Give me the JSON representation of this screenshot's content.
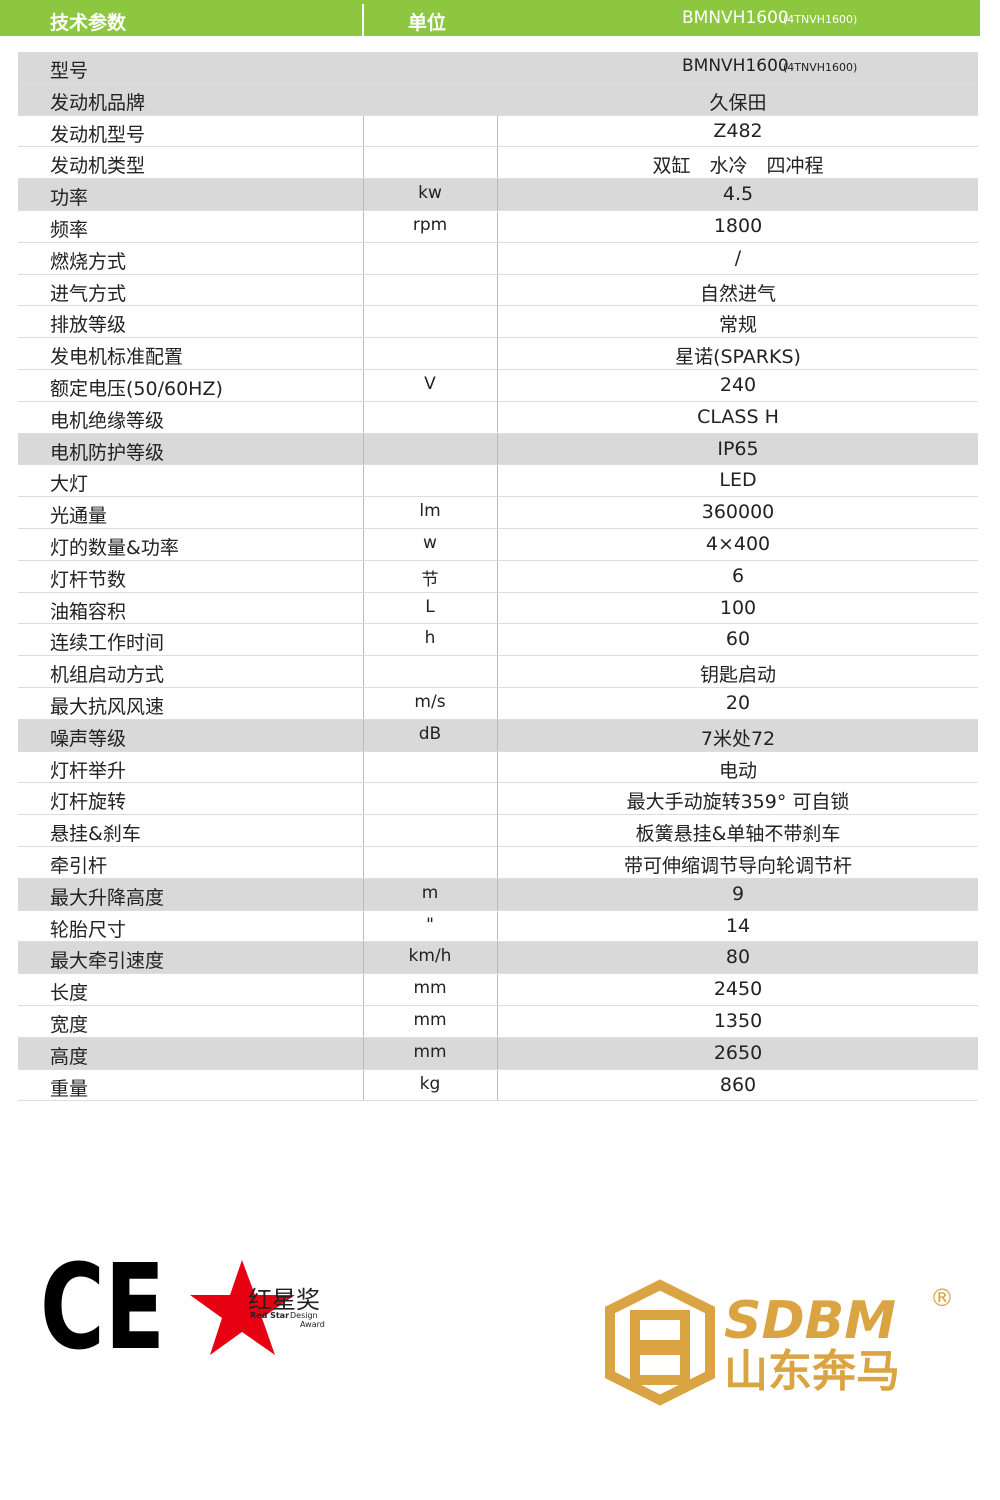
{
  "header": {
    "cells": [
      "技术参数",
      "单位",
      "BMNVH1600"
    ],
    "note": "(4TNVH1600)"
  },
  "table": {
    "rows": [
      {
        "label": "型号",
        "value": "BMNVH1600",
        "note": "(4TNVH1600)"
      },
      {
        "label": "发动机品牌",
        "value": "久保田"
      },
      {
        "label": "发动机型号",
        "value": "Z482"
      },
      {
        "label": "发动机类型",
        "value": "双缸　水冷　四冲程"
      },
      {
        "label": "功率",
        "unit": "kw",
        "value": "4.5"
      },
      {
        "label": "频率",
        "unit": "rpm",
        "value": "1800"
      },
      {
        "label": "燃烧方式",
        "value": "/"
      },
      {
        "label": "进气方式",
        "value": "自然进气"
      },
      {
        "label": "排放等级",
        "value": "常规"
      },
      {
        "label": "发电机标准配置",
        "value": "星诺(SPARKS)"
      },
      {
        "label": "额定电压(50/60HZ)",
        "unit": "V",
        "value": "240"
      },
      {
        "label": "电机绝缘等级",
        "value": "CLASS H"
      },
      {
        "label": "电机防护等级",
        "value": "IP65"
      },
      {
        "label": "大灯",
        "value": "LED"
      },
      {
        "label": "光通量",
        "unit": "lm",
        "value": "360000"
      },
      {
        "label": "灯的数量&功率",
        "unit": "w",
        "value": "4×400"
      },
      {
        "label": "灯杆节数",
        "unit": "节",
        "value": "6"
      },
      {
        "label": "油箱容积",
        "unit": "L",
        "value": "100"
      },
      {
        "label": "连续工作时间",
        "unit": "h",
        "value": "60"
      },
      {
        "label": "机组启动方式",
        "value": "钥匙启动"
      },
      {
        "label": "最大抗风风速",
        "unit": "m/s",
        "value": "20"
      },
      {
        "label": "噪声等级",
        "unit": "dB",
        "value": "7米处72"
      },
      {
        "label": "灯杆举升",
        "value": "电动"
      },
      {
        "label": "灯杆旋转",
        "value": "最大手动旋转359° 可自锁"
      },
      {
        "label": "悬挂&刹车",
        "value": "板簧悬挂&单轴不带刹车"
      },
      {
        "label": "牵引杆",
        "value": "带可伸缩调节导向轮调节杆"
      },
      {
        "label": "最大升降高度",
        "unit": "m",
        "value": "9"
      },
      {
        "label": "轮胎尺寸",
        "unit": "\"",
        "value": "14"
      },
      {
        "label": "最大牵引速度",
        "unit": "km/h",
        "value": "80"
      },
      {
        "label": "长度",
        "unit": "mm",
        "value": "2450"
      },
      {
        "label": "宽度",
        "unit": "mm",
        "value": "1350"
      },
      {
        "label": "高度",
        "unit": "mm",
        "value": "2650"
      },
      {
        "label": "重量",
        "unit": "kg",
        "value": "860"
      }
    ]
  },
  "logos": {
    "ce": "CE",
    "red_star_cn": "红星奖",
    "red_star_en": [
      "Red Star",
      "Design",
      "Award"
    ],
    "brand_en": "SDBM",
    "brand_cn": "山东奔马",
    "registered": "®"
  }
}
